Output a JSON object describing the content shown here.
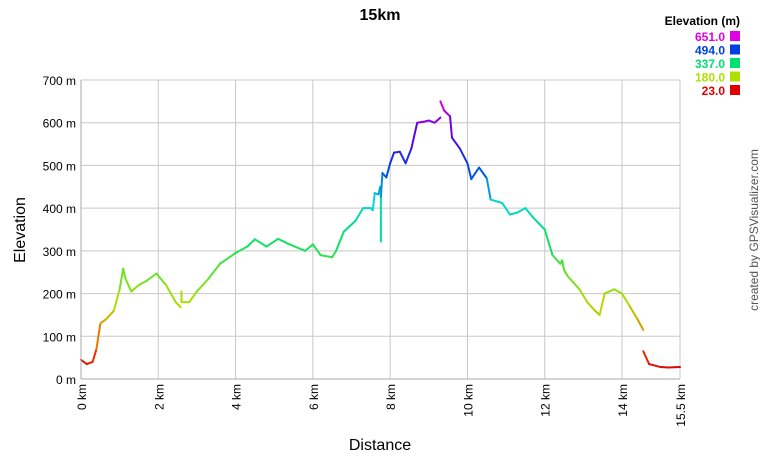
{
  "chart_data": {
    "type": "line",
    "title": "15km",
    "xlabel": "Distance",
    "ylabel": "Elevation",
    "xlim": [
      0,
      15.5
    ],
    "ylim": [
      0,
      700
    ],
    "grid": true,
    "x_ticks": [
      "0 km",
      "2 km",
      "4 km",
      "6 km",
      "8 km",
      "10 km",
      "12 km",
      "14 km",
      "15.5 km"
    ],
    "x_tick_values": [
      0,
      2,
      4,
      6,
      8,
      10,
      12,
      14,
      15.5
    ],
    "y_ticks": [
      "0 m",
      "100 m",
      "200 m",
      "300 m",
      "400 m",
      "500 m",
      "600 m",
      "700 m"
    ],
    "y_tick_values": [
      0,
      100,
      200,
      300,
      400,
      500,
      600,
      700
    ],
    "legend": {
      "title": "Elevation (m)",
      "placement": "top-right",
      "entries": [
        {
          "label": "651.0",
          "color": "#e000e0"
        },
        {
          "label": "494.0",
          "color": "#0040e0"
        },
        {
          "label": "337.0",
          "color": "#00e070"
        },
        {
          "label": "180.0",
          "color": "#b0e000"
        },
        {
          "label": "23.0",
          "color": "#e00000"
        }
      ]
    },
    "color_scale": "elevation",
    "segments": [
      [
        [
          0,
          45
        ],
        [
          0.15,
          35
        ],
        [
          0.3,
          40
        ],
        [
          0.4,
          70
        ],
        [
          0.5,
          130
        ],
        [
          0.65,
          140
        ],
        [
          0.85,
          160
        ],
        [
          1.0,
          210
        ],
        [
          1.09,
          258
        ],
        [
          1.15,
          235
        ],
        [
          1.3,
          205
        ],
        [
          1.5,
          220
        ],
        [
          1.7,
          230
        ],
        [
          1.95,
          247
        ],
        [
          2.2,
          220
        ],
        [
          2.45,
          180
        ],
        [
          2.58,
          168
        ]
      ],
      [
        [
          2.6,
          205
        ],
        [
          2.6,
          180
        ],
        [
          2.8,
          180
        ],
        [
          3.0,
          205
        ],
        [
          3.3,
          235
        ],
        [
          3.6,
          270
        ],
        [
          4.0,
          295
        ],
        [
          4.3,
          310
        ],
        [
          4.5,
          327
        ],
        [
          4.8,
          310
        ],
        [
          5.1,
          328
        ],
        [
          5.4,
          315
        ],
        [
          5.8,
          300
        ],
        [
          6.0,
          315
        ],
        [
          6.2,
          290
        ],
        [
          6.5,
          285
        ],
        [
          6.6,
          300
        ],
        [
          6.8,
          345
        ],
        [
          7.1,
          370
        ],
        [
          7.3,
          400
        ],
        [
          7.5,
          400
        ],
        [
          7.55,
          395
        ],
        [
          7.6,
          435
        ],
        [
          7.7,
          432
        ],
        [
          7.74,
          450
        ]
      ],
      [
        [
          7.76,
          322
        ],
        [
          7.76,
          427
        ]
      ],
      [
        [
          7.76,
          427
        ],
        [
          7.8,
          482
        ],
        [
          7.9,
          472
        ],
        [
          8.0,
          505
        ],
        [
          8.1,
          530
        ],
        [
          8.25,
          532
        ],
        [
          8.4,
          505
        ],
        [
          8.55,
          540
        ],
        [
          8.7,
          600
        ],
        [
          8.85,
          602
        ],
        [
          9.0,
          605
        ],
        [
          9.15,
          600
        ],
        [
          9.3,
          612
        ]
      ],
      [
        [
          9.3,
          650
        ],
        [
          9.4,
          628
        ],
        [
          9.55,
          615
        ],
        [
          9.6,
          565
        ],
        [
          9.8,
          540
        ],
        [
          10.0,
          505
        ],
        [
          10.1,
          468
        ],
        [
          10.3,
          495
        ],
        [
          10.5,
          470
        ],
        [
          10.6,
          420
        ],
        [
          10.9,
          412
        ],
        [
          11.1,
          385
        ],
        [
          11.3,
          390
        ],
        [
          11.5,
          400
        ],
        [
          11.7,
          378
        ],
        [
          12.0,
          350
        ],
        [
          12.2,
          290
        ],
        [
          12.4,
          270
        ],
        [
          12.45,
          278
        ],
        [
          12.5,
          255
        ],
        [
          12.6,
          240
        ],
        [
          12.9,
          210
        ],
        [
          13.1,
          180
        ],
        [
          13.3,
          160
        ],
        [
          13.42,
          150
        ],
        [
          13.55,
          200
        ],
        [
          13.8,
          210
        ],
        [
          14.0,
          200
        ],
        [
          14.2,
          170
        ],
        [
          14.4,
          140
        ],
        [
          14.55,
          115
        ]
      ],
      [
        [
          14.55,
          65
        ],
        [
          14.7,
          35
        ],
        [
          15.0,
          28
        ],
        [
          15.2,
          27
        ],
        [
          15.5,
          28
        ]
      ]
    ]
  },
  "credit": "created by GPSVisualizer.com"
}
